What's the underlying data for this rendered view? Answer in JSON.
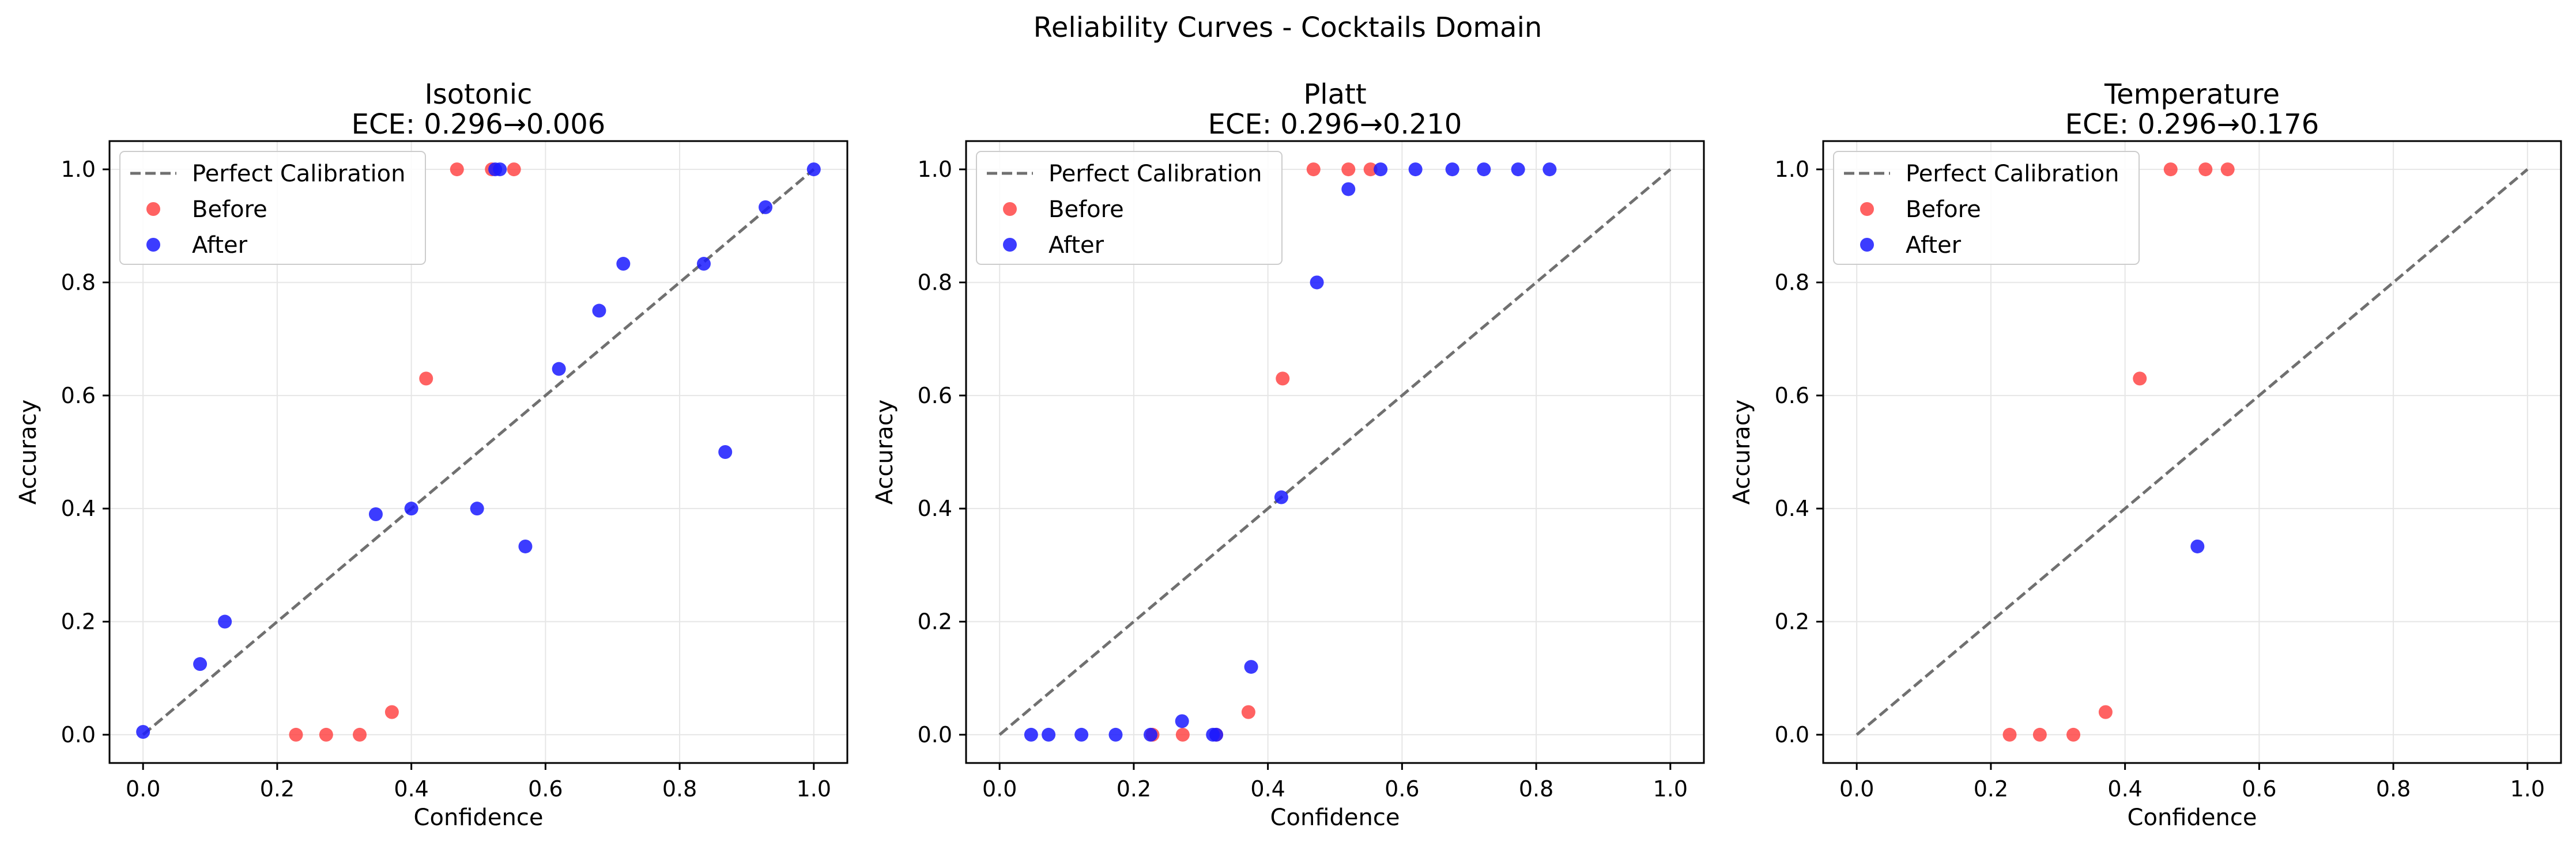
{
  "figure": {
    "suptitle": "Reliability Curves - Cocktails Domain"
  },
  "colors": {
    "before": "#ff3b3b",
    "after": "#1a1aff",
    "perfect": "#707070",
    "grid": "#e6e6e6"
  },
  "chart_data": [
    {
      "type": "scatter",
      "title": "Isotonic",
      "subtitle": "ECE: 0.296→0.006",
      "xlabel": "Confidence",
      "ylabel": "Accuracy",
      "xlim": [
        -0.05,
        1.05
      ],
      "ylim": [
        -0.05,
        1.05
      ],
      "xticks": [
        "0.0",
        "0.2",
        "0.4",
        "0.6",
        "0.8",
        "1.0"
      ],
      "yticks": [
        "0.0",
        "0.2",
        "0.4",
        "0.6",
        "0.8",
        "1.0"
      ],
      "grid": true,
      "legend_position": "top-left",
      "series": [
        {
          "name": "Perfect Calibration",
          "kind": "line",
          "points": [
            [
              0,
              0
            ],
            [
              1,
              1
            ]
          ]
        },
        {
          "name": "Before",
          "kind": "scatter",
          "points": [
            [
              0.228,
              0.0
            ],
            [
              0.273,
              0.0
            ],
            [
              0.323,
              0.0
            ],
            [
              0.371,
              0.04
            ],
            [
              0.422,
              0.63
            ],
            [
              0.468,
              1.0
            ],
            [
              0.52,
              1.0
            ],
            [
              0.553,
              1.0
            ]
          ]
        },
        {
          "name": "After",
          "kind": "scatter",
          "points": [
            [
              0.0,
              0.005
            ],
            [
              0.085,
              0.125
            ],
            [
              0.122,
              0.2
            ],
            [
              0.347,
              0.39
            ],
            [
              0.4,
              0.4
            ],
            [
              0.498,
              0.4
            ],
            [
              0.525,
              1.0
            ],
            [
              0.532,
              1.0
            ],
            [
              0.57,
              0.333
            ],
            [
              0.62,
              0.647
            ],
            [
              0.68,
              0.75
            ],
            [
              0.716,
              0.833
            ],
            [
              0.836,
              0.833
            ],
            [
              0.868,
              0.5
            ],
            [
              0.928,
              0.933
            ],
            [
              1.0,
              1.0
            ]
          ]
        }
      ]
    },
    {
      "type": "scatter",
      "title": "Platt",
      "subtitle": "ECE: 0.296→0.210",
      "xlabel": "Confidence",
      "ylabel": "Accuracy",
      "xlim": [
        -0.05,
        1.05
      ],
      "ylim": [
        -0.05,
        1.05
      ],
      "xticks": [
        "0.0",
        "0.2",
        "0.4",
        "0.6",
        "0.8",
        "1.0"
      ],
      "yticks": [
        "0.0",
        "0.2",
        "0.4",
        "0.6",
        "0.8",
        "1.0"
      ],
      "grid": true,
      "legend_position": "top-left",
      "series": [
        {
          "name": "Perfect Calibration",
          "kind": "line",
          "points": [
            [
              0,
              0
            ],
            [
              1,
              1
            ]
          ]
        },
        {
          "name": "Before",
          "kind": "scatter",
          "points": [
            [
              0.228,
              0.0
            ],
            [
              0.273,
              0.0
            ],
            [
              0.323,
              0.0
            ],
            [
              0.371,
              0.04
            ],
            [
              0.422,
              0.63
            ],
            [
              0.468,
              1.0
            ],
            [
              0.52,
              1.0
            ],
            [
              0.553,
              1.0
            ]
          ]
        },
        {
          "name": "After",
          "kind": "scatter",
          "points": [
            [
              0.047,
              0.0
            ],
            [
              0.073,
              0.0
            ],
            [
              0.122,
              0.0
            ],
            [
              0.173,
              0.0
            ],
            [
              0.225,
              0.0
            ],
            [
              0.272,
              0.024
            ],
            [
              0.318,
              0.0
            ],
            [
              0.323,
              0.0
            ],
            [
              0.375,
              0.12
            ],
            [
              0.42,
              0.42
            ],
            [
              0.473,
              0.8
            ],
            [
              0.52,
              0.965
            ],
            [
              0.568,
              1.0
            ],
            [
              0.62,
              1.0
            ],
            [
              0.675,
              1.0
            ],
            [
              0.722,
              1.0
            ],
            [
              0.773,
              1.0
            ],
            [
              0.82,
              1.0
            ]
          ]
        }
      ]
    },
    {
      "type": "scatter",
      "title": "Temperature",
      "subtitle": "ECE: 0.296→0.176",
      "xlabel": "Confidence",
      "ylabel": "Accuracy",
      "xlim": [
        -0.05,
        1.05
      ],
      "ylim": [
        -0.05,
        1.05
      ],
      "xticks": [
        "0.0",
        "0.2",
        "0.4",
        "0.6",
        "0.8",
        "1.0"
      ],
      "yticks": [
        "0.0",
        "0.2",
        "0.4",
        "0.6",
        "0.8",
        "1.0"
      ],
      "grid": true,
      "legend_position": "top-left",
      "series": [
        {
          "name": "Perfect Calibration",
          "kind": "line",
          "points": [
            [
              0,
              0
            ],
            [
              1,
              1
            ]
          ]
        },
        {
          "name": "Before",
          "kind": "scatter",
          "points": [
            [
              0.228,
              0.0
            ],
            [
              0.273,
              0.0
            ],
            [
              0.323,
              0.0
            ],
            [
              0.371,
              0.04
            ],
            [
              0.422,
              0.63
            ],
            [
              0.468,
              1.0
            ],
            [
              0.52,
              1.0
            ],
            [
              0.553,
              1.0
            ]
          ]
        },
        {
          "name": "After",
          "kind": "scatter",
          "points": [
            [
              0.508,
              0.333
            ]
          ]
        }
      ]
    }
  ]
}
